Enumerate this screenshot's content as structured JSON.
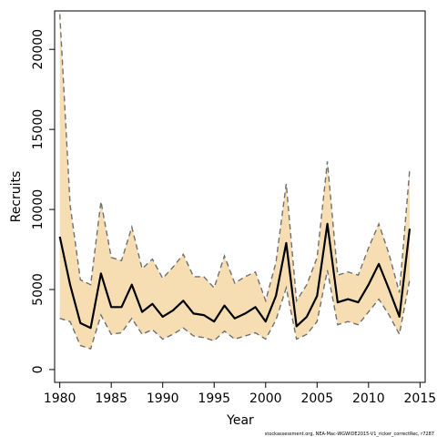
{
  "chart_data": {
    "type": "line",
    "xlabel": "Year",
    "ylabel": "Recruits",
    "xlim": [
      1979.5,
      2015.5
    ],
    "ylim": [
      -800,
      22400
    ],
    "x_ticks": [
      1980,
      1985,
      1990,
      1995,
      2000,
      2005,
      2010,
      2015
    ],
    "y_ticks": [
      0,
      5000,
      10000,
      15000,
      20000
    ],
    "x_tick_labels": [
      "1980",
      "1985",
      "1990",
      "1995",
      "2000",
      "2005",
      "2010",
      "2015"
    ],
    "y_tick_labels": [
      "0",
      "5000",
      "10000",
      "15000",
      "20000"
    ],
    "grid": false,
    "credit": "stockassessment.org, NEA-Mac-WGWIDE2015-V1_ricker_correctRec, r7287",
    "x": [
      1980,
      1981,
      1982,
      1983,
      1984,
      1985,
      1986,
      1987,
      1988,
      1989,
      1990,
      1991,
      1992,
      1993,
      1994,
      1995,
      1996,
      1997,
      1998,
      1999,
      2000,
      2001,
      2002,
      2003,
      2004,
      2005,
      2006,
      2007,
      2008,
      2009,
      2010,
      2011,
      2012,
      2013,
      2014
    ],
    "estimate": [
      8300,
      5300,
      2900,
      2600,
      6000,
      3900,
      3900,
      5300,
      3600,
      4100,
      3300,
      3700,
      4300,
      3500,
      3400,
      3000,
      4000,
      3200,
      3500,
      3900,
      3000,
      4600,
      7900,
      2700,
      3300,
      4600,
      9100,
      4200,
      4400,
      4200,
      5300,
      6600,
      5000,
      3300,
      8800
    ],
    "upper": [
      22200,
      10300,
      5600,
      5300,
      10500,
      7000,
      6800,
      8900,
      6300,
      6900,
      5700,
      6400,
      7200,
      5800,
      5800,
      5100,
      7100,
      5400,
      5800,
      6100,
      4300,
      6700,
      11600,
      4300,
      5300,
      7000,
      13000,
      5900,
      6100,
      5900,
      7600,
      9100,
      7200,
      4800,
      12500
    ],
    "lower": [
      3200,
      3000,
      1500,
      1300,
      3400,
      2200,
      2300,
      3200,
      2200,
      2500,
      1900,
      2200,
      2600,
      2100,
      2000,
      1800,
      2400,
      1900,
      2100,
      2300,
      1900,
      3100,
      5100,
      1900,
      2200,
      3000,
      6200,
      2800,
      3000,
      2800,
      3600,
      4400,
      3400,
      2200,
      5600
    ],
    "band_color": "#f6deb2",
    "estimate_color": "#000000",
    "ci_line_color": "#707070"
  }
}
